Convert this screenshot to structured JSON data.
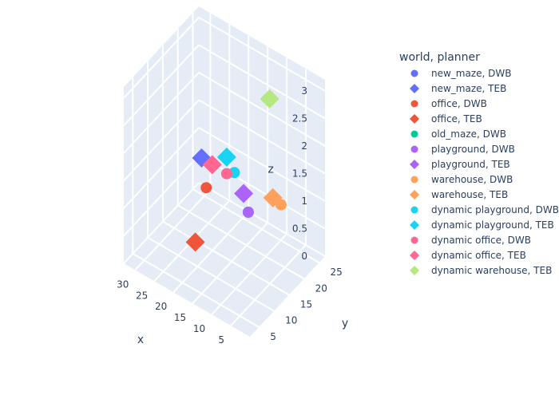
{
  "chart_data": {
    "type": "scatter3d",
    "legend_title": "world, planner",
    "legend_position": "right",
    "axes": {
      "x": {
        "label": "x",
        "ticks": [
          "5",
          "10",
          "15",
          "20",
          "25",
          "30"
        ],
        "range": [
          0,
          33
        ]
      },
      "y": {
        "label": "y",
        "ticks": [
          "5",
          "10",
          "15",
          "20",
          "25"
        ],
        "range": [
          2,
          27
        ]
      },
      "z": {
        "label": "z",
        "ticks": [
          "0",
          "0.5",
          "1",
          "1.5",
          "2",
          "2.5",
          "3"
        ],
        "range": [
          0,
          3.2
        ]
      }
    },
    "series": [
      {
        "name": "new_maze, DWB",
        "symbol": "circle",
        "color": "#636efa",
        "points": []
      },
      {
        "name": "new_maze, TEB",
        "symbol": "diamond",
        "color": "#636efa",
        "points": [
          {
            "x": 26,
            "y": 19,
            "z": 1.2
          }
        ]
      },
      {
        "name": "office, DWB",
        "symbol": "circle",
        "color": "#EF553B",
        "points": [
          {
            "x": 24,
            "y": 18,
            "z": 0.8
          }
        ]
      },
      {
        "name": "office, TEB",
        "symbol": "diamond",
        "color": "#EF553B",
        "points": [
          {
            "x": 19,
            "y": 8,
            "z": 0.6
          }
        ]
      },
      {
        "name": "old_maze, DWB",
        "symbol": "circle",
        "color": "#00cc96",
        "points": [
          {
            "x": 13,
            "y": 18,
            "z": 0.8
          }
        ]
      },
      {
        "name": "playground, DWB",
        "symbol": "circle",
        "color": "#ab63fa",
        "points": [
          {
            "x": 13,
            "y": 18,
            "z": 0.8
          }
        ]
      },
      {
        "name": "playground, TEB",
        "symbol": "diamond",
        "color": "#ab63fa",
        "points": [
          {
            "x": 15,
            "y": 19,
            "z": 1.0
          }
        ]
      },
      {
        "name": "warehouse, DWB",
        "symbol": "circle",
        "color": "#FFA15A",
        "points": [
          {
            "x": 6,
            "y": 20,
            "z": 1.1
          }
        ]
      },
      {
        "name": "warehouse, TEB",
        "symbol": "diamond",
        "color": "#FFA15A",
        "points": [
          {
            "x": 5,
            "y": 16,
            "z": 1.5
          }
        ]
      },
      {
        "name": "dynamic playground, DWB",
        "symbol": "circle",
        "color": "#19d3f3",
        "points": [
          {
            "x": 19,
            "y": 21,
            "z": 1.1
          }
        ]
      },
      {
        "name": "dynamic playground, TEB",
        "symbol": "diamond",
        "color": "#19d3f3",
        "points": [
          {
            "x": 21,
            "y": 21,
            "z": 1.3
          }
        ]
      },
      {
        "name": "dynamic office, DWB",
        "symbol": "circle",
        "color": "#FF6692",
        "points": [
          {
            "x": 21,
            "y": 21,
            "z": 1.0
          }
        ]
      },
      {
        "name": "dynamic office, TEB",
        "symbol": "diamond",
        "color": "#FF6692",
        "points": [
          {
            "x": 24,
            "y": 20,
            "z": 1.1
          }
        ]
      },
      {
        "name": "dynamic warehouse, TEB",
        "symbol": "diamond",
        "color": "#B6E880",
        "points": [
          {
            "x": 9,
            "y": 20,
            "z": 2.9
          }
        ]
      }
    ]
  }
}
